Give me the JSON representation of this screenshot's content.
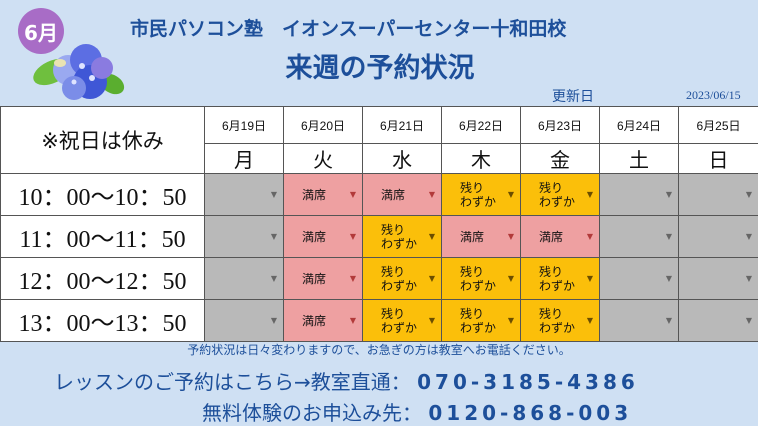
{
  "header": {
    "month_badge": "6月",
    "title_line1": "市民パソコン塾　イオンスーパーセンター十和田校",
    "title_line2": "来週の予約状況",
    "updated_label": "更新日",
    "updated_date": "2023/06/15"
  },
  "table": {
    "note": "※祝日は休み",
    "days": [
      {
        "date": "6月19日",
        "dow": "月"
      },
      {
        "date": "6月20日",
        "dow": "火"
      },
      {
        "date": "6月21日",
        "dow": "水"
      },
      {
        "date": "6月22日",
        "dow": "木"
      },
      {
        "date": "6月23日",
        "dow": "金"
      },
      {
        "date": "6月24日",
        "dow": "土"
      },
      {
        "date": "6月25日",
        "dow": "日"
      }
    ],
    "rows": [
      {
        "time": "10：00〜10：50",
        "slots": [
          {
            "status": "closed",
            "label": ""
          },
          {
            "status": "full",
            "label": "満席"
          },
          {
            "status": "full",
            "label": "満席"
          },
          {
            "status": "few",
            "label": "残り\nわずか"
          },
          {
            "status": "few",
            "label": "残り\nわずか"
          },
          {
            "status": "closed",
            "label": ""
          },
          {
            "status": "closed",
            "label": ""
          }
        ]
      },
      {
        "time": "11：00〜11：50",
        "slots": [
          {
            "status": "closed",
            "label": ""
          },
          {
            "status": "full",
            "label": "満席"
          },
          {
            "status": "few",
            "label": "残り\nわずか"
          },
          {
            "status": "full",
            "label": "満席"
          },
          {
            "status": "full",
            "label": "満席"
          },
          {
            "status": "closed",
            "label": ""
          },
          {
            "status": "closed",
            "label": ""
          }
        ]
      },
      {
        "time": "12：00〜12：50",
        "slots": [
          {
            "status": "closed",
            "label": ""
          },
          {
            "status": "full",
            "label": "満席"
          },
          {
            "status": "few",
            "label": "残り\nわずか"
          },
          {
            "status": "few",
            "label": "残り\nわずか"
          },
          {
            "status": "few",
            "label": "残り\nわずか"
          },
          {
            "status": "closed",
            "label": ""
          },
          {
            "status": "closed",
            "label": ""
          }
        ]
      },
      {
        "time": "13：00〜13：50",
        "slots": [
          {
            "status": "closed",
            "label": ""
          },
          {
            "status": "full",
            "label": "満席"
          },
          {
            "status": "few",
            "label": "残り\nわずか"
          },
          {
            "status": "few",
            "label": "残り\nわずか"
          },
          {
            "status": "few",
            "label": "残り\nわずか"
          },
          {
            "status": "closed",
            "label": ""
          },
          {
            "status": "closed",
            "label": ""
          }
        ]
      }
    ]
  },
  "footer": {
    "note": "予約状況は日々変わりますので、お急ぎの方は教室へお電話ください。",
    "contact1_label": "レッスンのご予約はこちら→教室直通：",
    "contact1_number": "070-3185-4386",
    "contact2_label": "無料体験のお申込み先：",
    "contact2_number": "0120-868-003"
  },
  "colors": {
    "full": "#eea0a1",
    "few": "#fbbf0a",
    "closed": "#b9b9b9",
    "title": "#1d4f9a",
    "background": "#cfe0f3"
  },
  "icons": {
    "dropdown": "triangle-down-icon",
    "decoration": "hydrangea-flower-icon"
  }
}
